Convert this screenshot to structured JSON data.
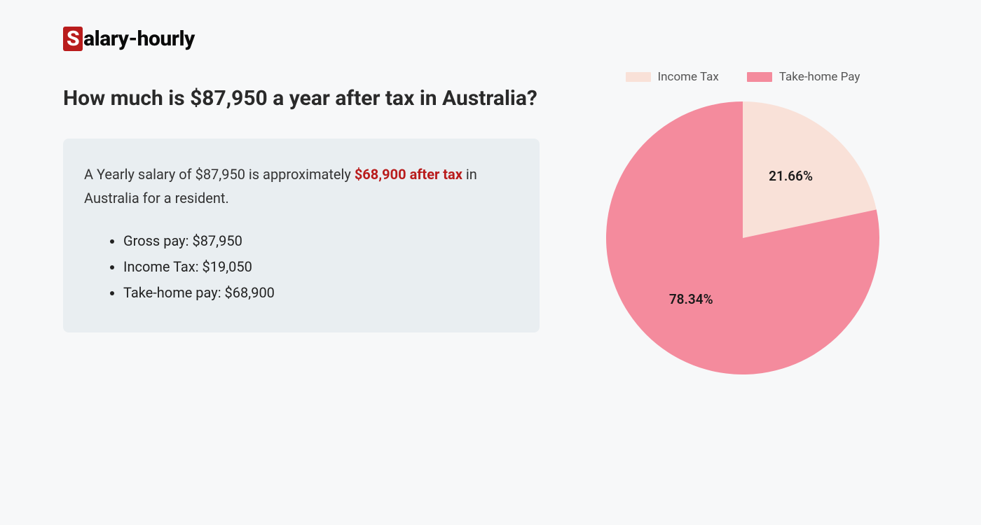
{
  "logo": {
    "icon_letter": "S",
    "rest": "alary-hourly",
    "icon_bg": "#b91c1c",
    "icon_fg": "#ffffff"
  },
  "heading": "How much is $87,950 a year after tax in Australia?",
  "summary": {
    "prefix": "A Yearly salary of $87,950 is approximately ",
    "highlight": "$68,900 after tax",
    "suffix": " in Australia for a resident.",
    "box_bg": "#e9eef1",
    "highlight_color": "#b91c1c",
    "items": [
      "Gross pay: $87,950",
      "Income Tax: $19,050",
      "Take-home pay: $68,900"
    ]
  },
  "chart": {
    "type": "pie",
    "background_color": "#f7f8f9",
    "radius": 195,
    "label_fontsize": 19,
    "legend_fontsize": 17,
    "legend": [
      {
        "label": "Income Tax",
        "color": "#f9e1d8"
      },
      {
        "label": "Take-home Pay",
        "color": "#f48b9d"
      }
    ],
    "slices": [
      {
        "name": "income_tax",
        "value": 21.66,
        "label": "21.66%",
        "color": "#f9e1d8"
      },
      {
        "name": "take_home",
        "value": 78.34,
        "label": "78.34%",
        "color": "#f48b9d"
      }
    ]
  }
}
